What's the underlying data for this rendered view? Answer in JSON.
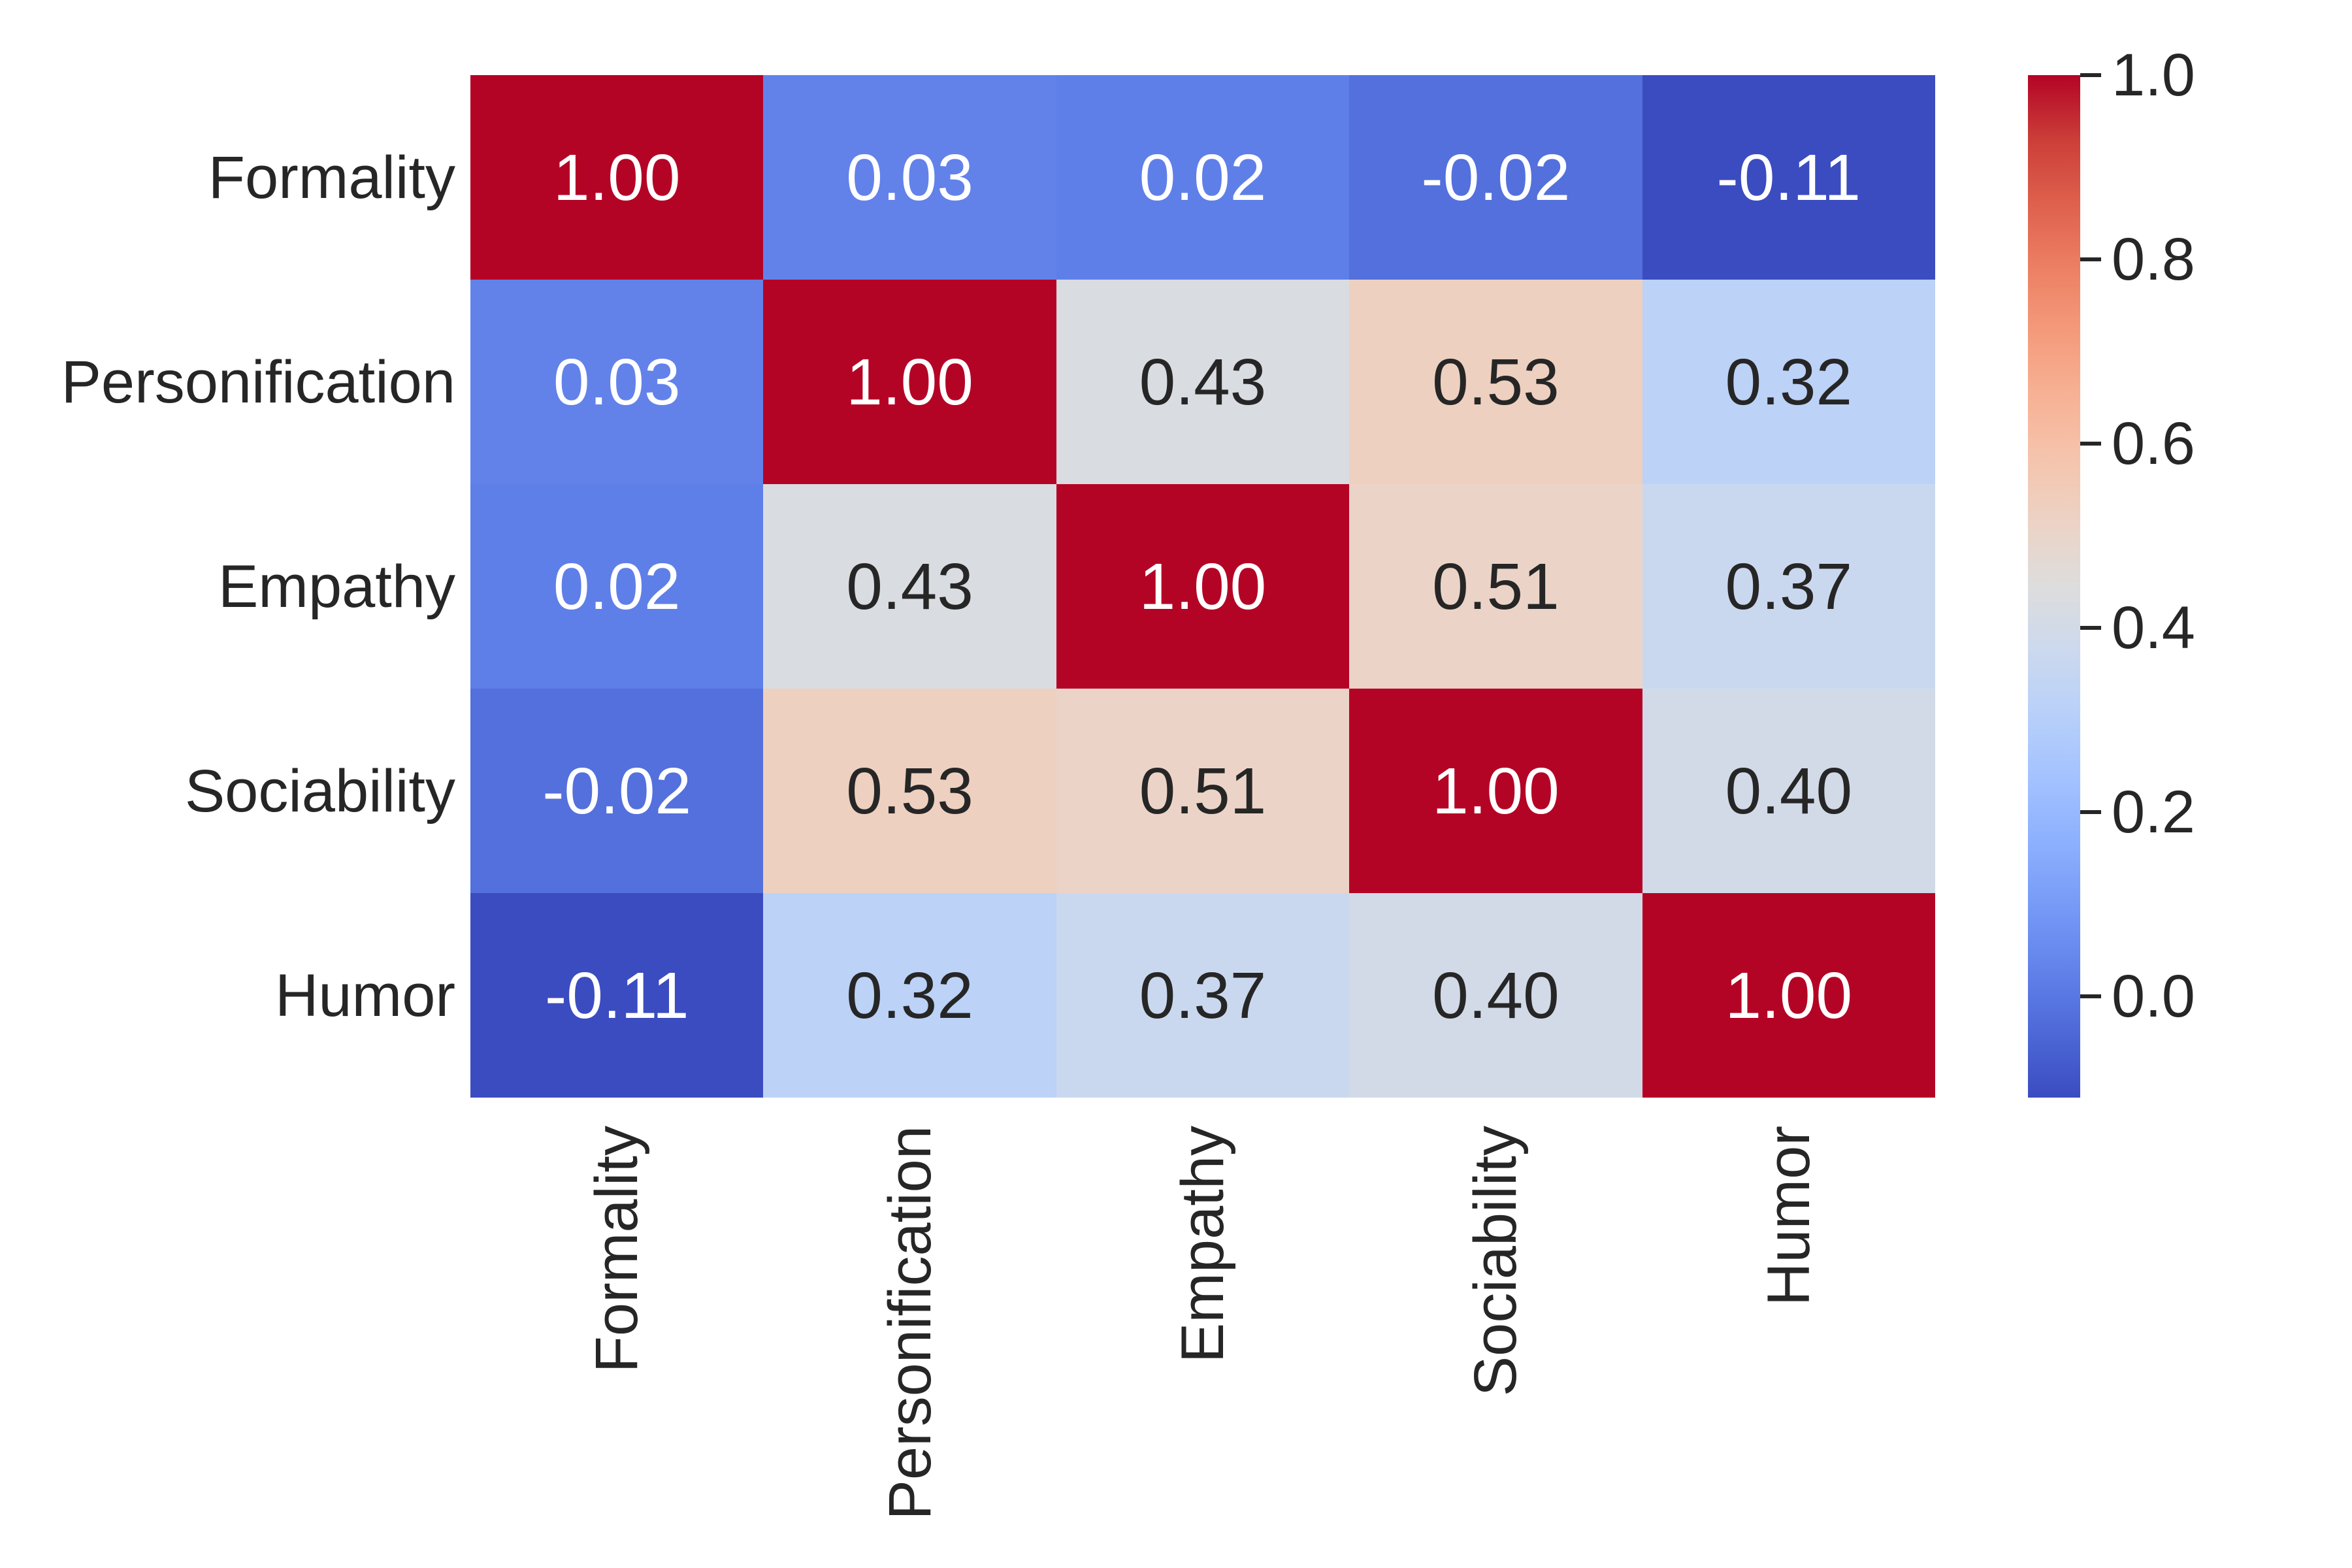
{
  "chart_data": {
    "type": "heatmap",
    "categories": [
      "Formality",
      "Personification",
      "Empathy",
      "Sociability",
      "Humor"
    ],
    "matrix": [
      [
        1.0,
        0.03,
        0.02,
        -0.02,
        -0.11
      ],
      [
        0.03,
        1.0,
        0.43,
        0.53,
        0.32
      ],
      [
        0.02,
        0.43,
        1.0,
        0.51,
        0.37
      ],
      [
        -0.02,
        0.53,
        0.51,
        1.0,
        0.4
      ],
      [
        -0.11,
        0.32,
        0.37,
        0.4,
        1.0
      ]
    ],
    "cell_labels": [
      [
        "1.00",
        "0.03",
        "0.02",
        "-0.02",
        "-0.11"
      ],
      [
        "0.03",
        "1.00",
        "0.43",
        "0.53",
        "0.32"
      ],
      [
        "0.02",
        "0.43",
        "1.00",
        "0.51",
        "0.37"
      ],
      [
        "-0.02",
        "0.53",
        "0.51",
        "1.00",
        "0.40"
      ],
      [
        "-0.11",
        "0.32",
        "0.37",
        "0.40",
        "1.00"
      ]
    ],
    "colormap": "coolwarm",
    "vmin": -0.11,
    "vmax": 1.0,
    "annotations": true,
    "grid": false,
    "colorbar": {
      "position": "right",
      "tick_labels": [
        "1.0",
        "0.8",
        "0.6",
        "0.4",
        "0.2",
        "0.0"
      ],
      "tick_values": [
        1.0,
        0.8,
        0.6,
        0.4,
        0.2,
        0.0
      ]
    }
  },
  "colors": {
    "background": "#ffffff",
    "text_dark": "#262626",
    "text_light": "#ffffff",
    "max_red": "#b40426",
    "min_blue": "#3b4cc0"
  }
}
